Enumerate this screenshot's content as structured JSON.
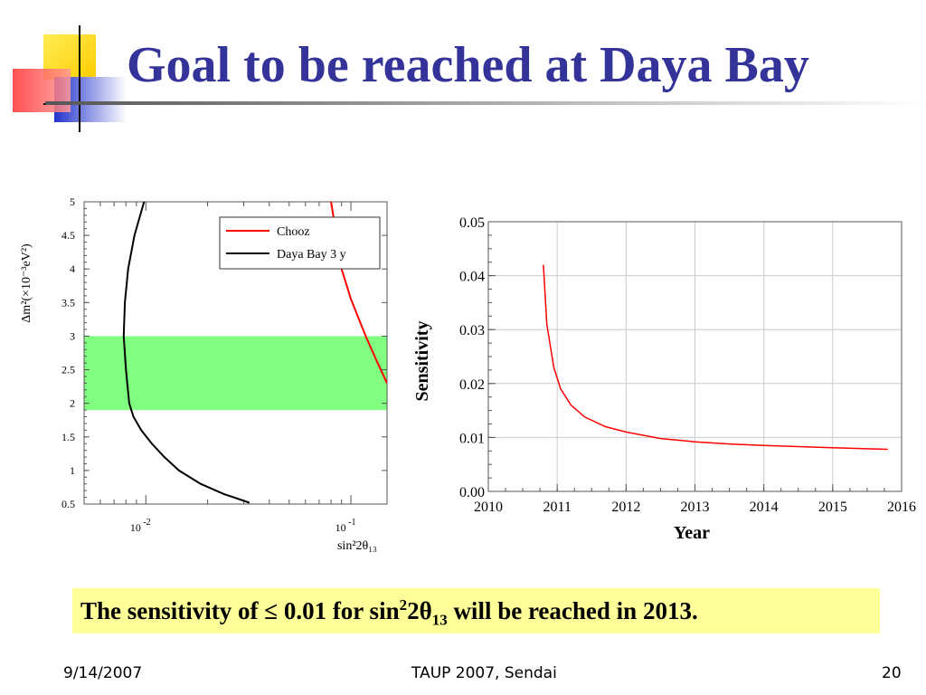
{
  "slide": {
    "title": "Goal to be reached at Daya Bay",
    "callout": {
      "prefix": "The sensitivity of ≤ 0.01 for sin",
      "sup": "2",
      "mid": "2θ",
      "sub": "13",
      "suffix": " will be reached in 2013."
    },
    "footer": {
      "date": "9/14/2007",
      "conference": "TAUP 2007, Sendai",
      "page": "20"
    },
    "colors": {
      "title": "#333399",
      "callout_bg": "#ffff99",
      "band": "#80ff80",
      "red": "#ff0000"
    }
  },
  "chart_data": [
    {
      "type": "line",
      "xscale": "log",
      "xlim": [
        0.005,
        0.15
      ],
      "ylim": [
        0.5,
        5
      ],
      "xlabel": "sin²2θ₁₃",
      "ylabel": "Δm²(×10⁻³eV²)",
      "x_tick_labels": [
        {
          "value": 0.01,
          "base": "10",
          "exp": "-2"
        },
        {
          "value": 0.1,
          "base": "10",
          "exp": "-1"
        }
      ],
      "y_ticks": [
        "0.5",
        "1",
        "1.5",
        "2",
        "2.5",
        "3",
        "3.5",
        "4",
        "4.5",
        "5"
      ],
      "shaded_band": {
        "ymin": 1.9,
        "ymax": 3.0,
        "color": "#80ff80"
      },
      "legend": {
        "position": "top-right",
        "entries": [
          "Chooz",
          "Daya Bay 3 y"
        ]
      },
      "series": [
        {
          "name": "Chooz",
          "color": "#ff0000",
          "points": [
            [
              0.08,
              5.0
            ],
            [
              0.085,
              4.5
            ],
            [
              0.09,
              4.0
            ],
            [
              0.1,
              3.55
            ],
            [
              0.118,
              3.0
            ],
            [
              0.135,
              2.6
            ],
            [
              0.15,
              2.3
            ]
          ]
        },
        {
          "name": "Daya Bay 3 y",
          "color": "#000000",
          "points": [
            [
              0.0098,
              5.0
            ],
            [
              0.0088,
              4.5
            ],
            [
              0.0082,
              4.0
            ],
            [
              0.0079,
              3.5
            ],
            [
              0.0078,
              3.0
            ],
            [
              0.008,
              2.5
            ],
            [
              0.0083,
              2.0
            ],
            [
              0.0087,
              1.8
            ],
            [
              0.0095,
              1.6
            ],
            [
              0.0107,
              1.4
            ],
            [
              0.0123,
              1.2
            ],
            [
              0.0145,
              1.0
            ],
            [
              0.0185,
              0.8
            ],
            [
              0.024,
              0.65
            ],
            [
              0.032,
              0.52
            ]
          ]
        }
      ]
    },
    {
      "type": "line",
      "xlim": [
        2010,
        2016
      ],
      "ylim": [
        0,
        0.05
      ],
      "xlabel": "Year",
      "ylabel": "Sensitivity",
      "x_ticks": [
        "2010",
        "2011",
        "2012",
        "2013",
        "2014",
        "2015",
        "2016"
      ],
      "y_ticks": [
        "0.00",
        "0.01",
        "0.02",
        "0.03",
        "0.04",
        "0.05"
      ],
      "grid": true,
      "series": [
        {
          "color": "#ff0000",
          "points": [
            [
              2010.8,
              0.042
            ],
            [
              2010.85,
              0.031
            ],
            [
              2010.95,
              0.023
            ],
            [
              2011.05,
              0.019
            ],
            [
              2011.2,
              0.016
            ],
            [
              2011.4,
              0.0138
            ],
            [
              2011.7,
              0.012
            ],
            [
              2012.0,
              0.011
            ],
            [
              2012.5,
              0.0098
            ],
            [
              2013.0,
              0.0092
            ],
            [
              2013.5,
              0.0088
            ],
            [
              2014.0,
              0.0085
            ],
            [
              2014.5,
              0.0083
            ],
            [
              2015.0,
              0.0081
            ],
            [
              2015.5,
              0.0079
            ],
            [
              2015.8,
              0.0078
            ]
          ]
        }
      ]
    }
  ]
}
